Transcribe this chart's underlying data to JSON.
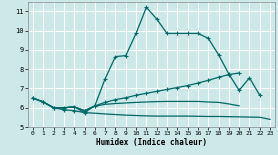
{
  "xlabel": "Humidex (Indice chaleur)",
  "background_color": "#cce8e8",
  "grid_color": "#ffffff",
  "line_color": "#006868",
  "xlim": [
    -0.5,
    23.5
  ],
  "ylim": [
    5,
    11.5
  ],
  "yticks": [
    5,
    6,
    7,
    8,
    9,
    10,
    11
  ],
  "xticks": [
    0,
    1,
    2,
    3,
    4,
    5,
    6,
    7,
    8,
    9,
    10,
    11,
    12,
    13,
    14,
    15,
    16,
    17,
    18,
    19,
    20,
    21,
    22,
    23
  ],
  "line1_x": [
    0,
    1,
    2,
    3,
    4,
    5,
    6,
    7,
    8,
    9,
    10,
    11,
    12,
    13,
    14,
    15,
    16,
    17,
    18,
    19,
    20,
    21,
    22
  ],
  "line1_y": [
    6.5,
    6.3,
    6.0,
    5.9,
    5.85,
    5.75,
    6.1,
    7.5,
    8.65,
    8.7,
    9.85,
    11.2,
    10.6,
    9.85,
    9.85,
    9.85,
    9.85,
    9.6,
    8.75,
    7.75,
    6.9,
    7.55,
    6.65
  ],
  "line2_x": [
    0,
    1,
    2,
    3,
    4,
    5,
    6,
    7,
    8,
    9,
    10,
    11,
    12,
    13,
    14,
    15,
    16,
    17,
    18,
    19,
    20
  ],
  "line2_y": [
    6.5,
    6.3,
    6.0,
    6.0,
    6.05,
    5.85,
    6.1,
    6.28,
    6.42,
    6.52,
    6.65,
    6.75,
    6.85,
    6.95,
    7.05,
    7.15,
    7.28,
    7.42,
    7.58,
    7.72,
    7.8
  ],
  "line3_x": [
    0,
    1,
    2,
    3,
    4,
    5,
    6,
    7,
    8,
    9,
    10,
    11,
    12,
    13,
    14,
    15,
    16,
    17,
    18,
    19,
    20
  ],
  "line3_y": [
    6.5,
    6.3,
    6.0,
    6.0,
    6.05,
    5.85,
    6.08,
    6.18,
    6.22,
    6.25,
    6.28,
    6.3,
    6.32,
    6.33,
    6.33,
    6.33,
    6.33,
    6.3,
    6.28,
    6.2,
    6.1
  ],
  "line4_x": [
    0,
    1,
    2,
    3,
    4,
    5,
    6,
    7,
    8,
    9,
    10,
    11,
    12,
    13,
    14,
    15,
    16,
    17,
    18,
    19,
    20,
    21,
    22,
    23
  ],
  "line4_y": [
    6.5,
    6.3,
    6.0,
    6.0,
    6.05,
    5.75,
    5.72,
    5.68,
    5.65,
    5.62,
    5.6,
    5.58,
    5.57,
    5.57,
    5.57,
    5.57,
    5.56,
    5.55,
    5.55,
    5.54,
    5.53,
    5.52,
    5.51,
    5.4
  ]
}
